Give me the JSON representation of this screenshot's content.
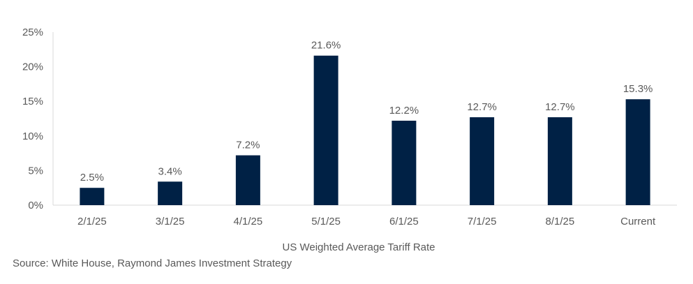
{
  "chart_data": {
    "type": "bar",
    "categories": [
      "2/1/25",
      "3/1/25",
      "4/1/25",
      "5/1/25",
      "6/1/25",
      "7/1/25",
      "8/1/25",
      "Current"
    ],
    "values": [
      2.5,
      3.4,
      7.2,
      21.6,
      12.2,
      12.7,
      12.7,
      15.3
    ],
    "data_labels": [
      "2.5%",
      "3.4%",
      "7.2%",
      "21.6%",
      "12.2%",
      "12.7%",
      "12.7%",
      "15.3%"
    ],
    "y_ticks": [
      0,
      5,
      10,
      15,
      20,
      25
    ],
    "y_tick_labels": [
      "0%",
      "5%",
      "10%",
      "15%",
      "20%",
      "25%"
    ],
    "ylim": [
      0,
      25
    ],
    "xlabel": "US Weighted Average Tariff Rate",
    "ylabel": "",
    "title": "",
    "grid": false,
    "legend": "none",
    "colors": {
      "bar": "#002145",
      "axis": "#d9d9d9",
      "text": "#595959"
    }
  },
  "source": "Source: White House, Raymond James Investment Strategy"
}
